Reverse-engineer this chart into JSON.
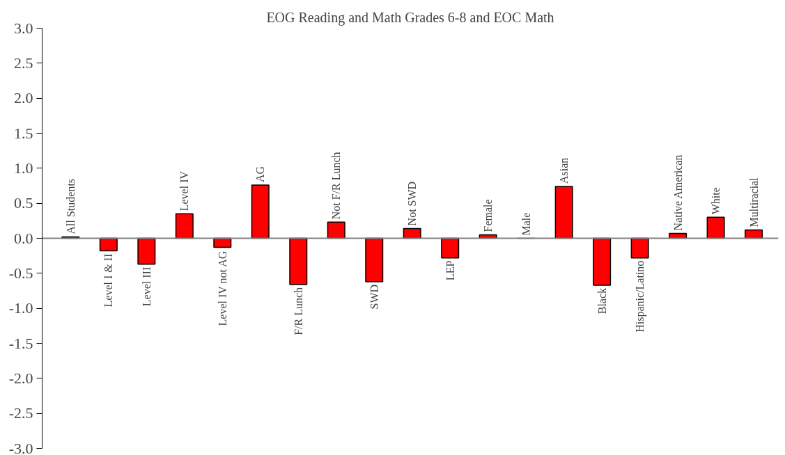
{
  "chart_data": {
    "type": "bar",
    "title": "EOG Reading and Math Grades 6-8 and EOC Math",
    "categories": [
      "All Students",
      "Level I & II",
      "Level III",
      "Level IV",
      "Level IV not AG",
      "AG",
      "F/R Lunch",
      "Not F/R Lunch",
      "SWD",
      "Not SWD",
      "LEP",
      "Female",
      "Male",
      "Asian",
      "Black",
      "Hispanic/Latino",
      "Native American",
      "White",
      "Multiracial"
    ],
    "values": [
      0.02,
      -0.18,
      -0.37,
      0.35,
      -0.13,
      0.76,
      -0.66,
      0.23,
      -0.62,
      0.14,
      -0.28,
      0.05,
      0,
      0.74,
      -0.67,
      -0.28,
      0.07,
      0.3,
      0.12
    ],
    "color": "#ff0000",
    "ylim": [
      -3,
      3
    ],
    "yticks": [
      {
        "value": -3,
        "label": "-3.0"
      },
      {
        "value": -2.5,
        "label": "-2.5"
      },
      {
        "value": -2,
        "label": "-2.0"
      },
      {
        "value": -1.5,
        "label": "-1.5"
      },
      {
        "value": -1,
        "label": "-1.0"
      },
      {
        "value": -0.5,
        "label": "-0.5"
      },
      {
        "value": 0,
        "label": "0.0"
      },
      {
        "value": 0.5,
        "label": "0.5"
      },
      {
        "value": 1,
        "label": "1.0"
      },
      {
        "value": 1.5,
        "label": "1.5"
      },
      {
        "value": 2,
        "label": "2.0"
      },
      {
        "value": 2.5,
        "label": "2.5"
      },
      {
        "value": 3,
        "label": "3.0"
      }
    ],
    "grid": false
  }
}
